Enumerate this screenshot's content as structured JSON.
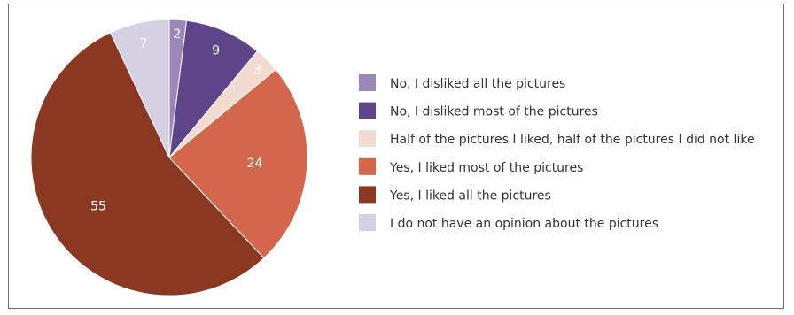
{
  "chart_data": {
    "type": "pie",
    "categories": [
      "No, I disliked all the pictures",
      "No, I disliked most of the pictures",
      "Half of the pictures I liked, half of the pictures I did not like",
      "Yes, I liked most of the pictures",
      "Yes, I liked all the pictures",
      "I do not have an opinion about the pictures"
    ],
    "values": [
      2,
      9,
      3,
      24,
      55,
      7
    ],
    "colors": [
      "#9b88b8",
      "#5e4589",
      "#f4dbd2",
      "#d4674b",
      "#8a3822",
      "#d5d1e3"
    ],
    "label_colors": [
      "#ffffff",
      "#ffffff",
      "#333333",
      "#ffffff",
      "#ffffff",
      "#ffffff"
    ],
    "start_angle_deg": 0,
    "direction": "clockwise",
    "legend_position": "right"
  }
}
